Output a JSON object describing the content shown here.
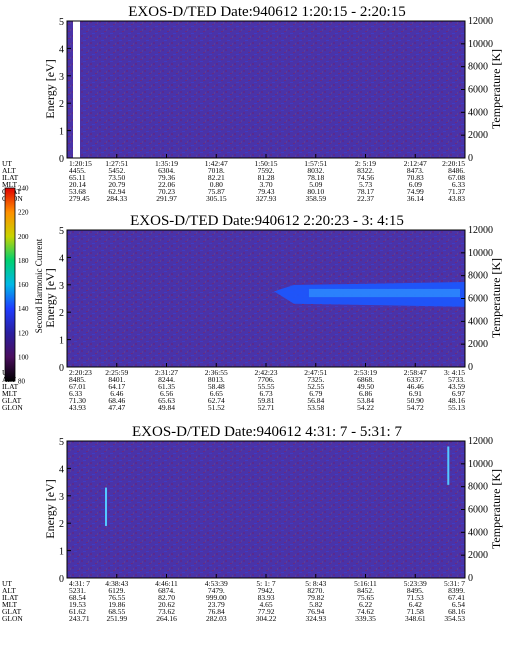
{
  "chart_data": [
    {
      "type": "heatmap",
      "title": "EXOS-D/TED   Date:940612  1:20:15 - 2:20:15",
      "ylabel": "Energy [eV]",
      "y2label": "Temperature [K]",
      "ylim": [
        0,
        5
      ],
      "yticks": [
        "0",
        "1",
        "2",
        "3",
        "4",
        "5"
      ],
      "y2lim": [
        0,
        12000
      ],
      "y2ticks": [
        "0",
        "2000",
        "4000",
        "6000",
        "8000",
        "10000",
        "12000"
      ],
      "features": [],
      "ephemeris": {
        "labels": [
          "UT",
          "ALT",
          "ILAT",
          "MLT",
          "GLAT",
          "GLON"
        ],
        "rows": [
          [
            "1:20:15",
            "1:27:51",
            "1:35:19",
            "1:42:47",
            "1:50:15",
            "1:57:51",
            "2: 5:19",
            "2:12:47",
            "2:20:15"
          ],
          [
            "4455.",
            "5452.",
            "6304.",
            "7018.",
            "7592.",
            "8032.",
            "8322.",
            "8473.",
            "8486."
          ],
          [
            "65.11",
            "73.50",
            "79.36",
            "82.21",
            "81.28",
            "78.18",
            "74.56",
            "70.83",
            "67.08"
          ],
          [
            "20.14",
            "20.79",
            "22.06",
            "0.80",
            "3.70",
            "5.09",
            "5.73",
            "6.09",
            "6.33"
          ],
          [
            "53.68",
            "62.94",
            "70.23",
            "75.87",
            "79.43",
            "80.10",
            "78.17",
            "74.99",
            "71.37"
          ],
          [
            "279.45",
            "284.33",
            "291.97",
            "305.15",
            "327.93",
            "358.59",
            "22.37",
            "36.14",
            "43.83"
          ]
        ]
      }
    },
    {
      "type": "heatmap",
      "title": "EXOS-D/TED   Date:940612  2:20:23 - 3: 4:15",
      "ylabel": "Energy [eV]",
      "y2label": "Temperature [K]",
      "ylim": [
        0,
        5
      ],
      "yticks": [
        "0",
        "1",
        "2",
        "3",
        "4",
        "5"
      ],
      "y2lim": [
        0,
        12000
      ],
      "y2ticks": [
        "0",
        "2000",
        "4000",
        "6000",
        "8000",
        "10000",
        "12000"
      ],
      "features": [
        {
          "kind": "band",
          "x_start": 0.52,
          "x_end": 1.0,
          "e_low": 2.2,
          "e_high": 3.1
        }
      ],
      "ephemeris": {
        "labels": [
          "UT",
          "ALT",
          "ILAT",
          "MLT",
          "GLAT",
          "GLON"
        ],
        "rows": [
          [
            "2:20:23",
            "2:25:59",
            "2:31:27",
            "2:36:55",
            "2:42:23",
            "2:47:51",
            "2:53:19",
            "2:58:47",
            "3: 4:15"
          ],
          [
            "8485.",
            "8401.",
            "8244.",
            "8013.",
            "7706.",
            "7325.",
            "6868.",
            "6337.",
            "5733."
          ],
          [
            "67.01",
            "64.17",
            "61.35",
            "58.48",
            "55.55",
            "52.55",
            "49.50",
            "46.46",
            "43.59"
          ],
          [
            "6.33",
            "6.46",
            "6.56",
            "6.65",
            "6.73",
            "6.79",
            "6.86",
            "6.91",
            "6.97"
          ],
          [
            "71.30",
            "68.46",
            "65.63",
            "62.74",
            "59.81",
            "56.84",
            "53.84",
            "50.90",
            "48.16"
          ],
          [
            "43.93",
            "47.47",
            "49.84",
            "51.52",
            "52.71",
            "53.58",
            "54.22",
            "54.72",
            "55.13"
          ]
        ]
      }
    },
    {
      "type": "heatmap",
      "title": "EXOS-D/TED   Date:940612  4:31: 7 - 5:31: 7",
      "ylabel": "Energy [eV]",
      "y2label": "Temperature [K]",
      "ylim": [
        0,
        5
      ],
      "yticks": [
        "0",
        "1",
        "2",
        "3",
        "4",
        "5"
      ],
      "y2lim": [
        0,
        12000
      ],
      "y2ticks": [
        "0",
        "2000",
        "4000",
        "6000",
        "8000",
        "10000",
        "12000"
      ],
      "features": [
        {
          "kind": "spike",
          "x": 0.098,
          "e_low": 1.9,
          "e_high": 3.3
        },
        {
          "kind": "spike",
          "x": 0.958,
          "e_low": 3.4,
          "e_high": 4.8
        }
      ],
      "ephemeris": {
        "labels": [
          "UT",
          "ALT",
          "ILAT",
          "MLT",
          "GLAT",
          "GLON"
        ],
        "rows": [
          [
            "4:31: 7",
            "4:38:43",
            "4:46:11",
            "4:53:39",
            "5: 1: 7",
            "5: 8:43",
            "5:16:11",
            "5:23:39",
            "5:31: 7"
          ],
          [
            "5231.",
            "6129.",
            "6874.",
            "7479.",
            "7942.",
            "8270.",
            "8452.",
            "8495.",
            "8399."
          ],
          [
            "68.54",
            "76.55",
            "82.70",
            "999.00",
            "83.93",
            "79.82",
            "75.65",
            "71.53",
            "67.41"
          ],
          [
            "19.53",
            "19.86",
            "20.62",
            "23.79",
            "4.65",
            "5.82",
            "6.22",
            "6.42",
            "6.54"
          ],
          [
            "61.62",
            "68.55",
            "73.62",
            "76.84",
            "77.92",
            "76.94",
            "74.62",
            "71.58",
            "68.16"
          ],
          [
            "243.71",
            "251.99",
            "264.16",
            "282.03",
            "304.22",
            "324.93",
            "339.35",
            "348.61",
            "354.53"
          ]
        ]
      }
    }
  ],
  "colorbar": {
    "label": "Second Harmonic Current",
    "range": [
      80,
      240
    ],
    "ticks": [
      "80",
      "100",
      "120",
      "140",
      "160",
      "180",
      "200",
      "220",
      "240"
    ],
    "colors": [
      "#000000",
      "#4a0e5e",
      "#2a1fa0",
      "#1f3cff",
      "#00b8e6",
      "#00d070",
      "#c8d400",
      "#ff9000",
      "#e00000"
    ]
  },
  "colors": {
    "background": "#4a33a8",
    "band": "#1b57ff",
    "band_core": "#34a6ff",
    "spike": "#55c8ff"
  }
}
